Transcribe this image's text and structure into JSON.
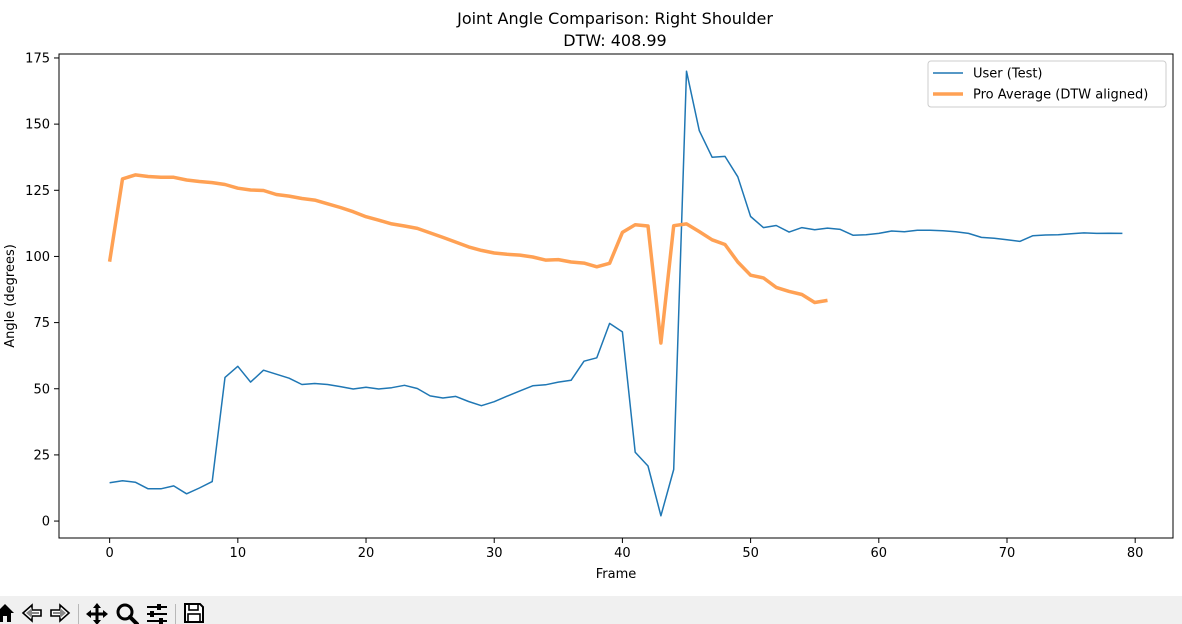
{
  "chart_data": {
    "type": "line",
    "title": "Joint Angle Comparison: Right Shoulder",
    "subtitle": "DTW: 408.99",
    "xlabel": "Frame",
    "ylabel": "Angle (degrees)",
    "xlim": [
      -3.95,
      82.95
    ],
    "ylim": [
      -6.4,
      176.5
    ],
    "xticks": [
      0,
      10,
      20,
      30,
      40,
      50,
      60,
      70,
      80
    ],
    "yticks": [
      0,
      25,
      50,
      75,
      100,
      125,
      150,
      175
    ],
    "grid": false,
    "legend_position": "top-right",
    "series": [
      {
        "name": "User (Test)",
        "color": "#1f77b4",
        "x": [
          0,
          1,
          2,
          3,
          4,
          5,
          6,
          7,
          8,
          9,
          10,
          11,
          12,
          13,
          14,
          15,
          16,
          17,
          18,
          19,
          20,
          21,
          22,
          23,
          24,
          25,
          26,
          27,
          28,
          29,
          30,
          31,
          32,
          33,
          34,
          35,
          36,
          37,
          38,
          39,
          40,
          41,
          42,
          43,
          44,
          45,
          46,
          47,
          48,
          49,
          50,
          51,
          52,
          53,
          54,
          55,
          56,
          57,
          58,
          59,
          60,
          61,
          62,
          63,
          64,
          65,
          66,
          67,
          68,
          69,
          70,
          71,
          72,
          73,
          74,
          75,
          76,
          77,
          78,
          79
        ],
        "y": [
          14.5,
          15.2,
          14.7,
          12.2,
          12.2,
          13.3,
          10.3,
          12.5,
          14.9,
          54.3,
          58.5,
          52.5,
          57.0,
          55.5,
          54.0,
          51.6,
          52.0,
          51.6,
          50.8,
          49.9,
          50.6,
          49.9,
          50.4,
          51.3,
          50.1,
          47.3,
          46.5,
          47.1,
          45.2,
          43.6,
          45.1,
          47.2,
          49.2,
          51.1,
          51.5,
          52.5,
          53.2,
          60.4,
          61.7,
          74.7,
          71.5,
          26.0,
          20.8,
          2.0,
          19.5,
          170.0,
          147.5,
          137.5,
          137.8,
          130.1,
          115.1,
          110.9,
          111.7,
          109.2,
          110.9,
          110.1,
          110.7,
          110.2,
          108.0,
          108.2,
          108.7,
          109.6,
          109.3,
          109.9,
          109.9,
          109.7,
          109.3,
          108.7,
          107.2,
          106.9,
          106.3,
          105.7,
          107.8,
          108.1,
          108.2,
          108.6,
          108.9,
          108.7,
          108.8,
          108.7
        ]
      },
      {
        "name": "Pro Average (DTW aligned)",
        "color": "#ffa154",
        "x": [
          0,
          1,
          2,
          3,
          4,
          5,
          6,
          7,
          8,
          9,
          10,
          11,
          12,
          13,
          14,
          15,
          16,
          17,
          18,
          19,
          20,
          21,
          22,
          23,
          24,
          25,
          26,
          27,
          28,
          29,
          30,
          31,
          32,
          33,
          34,
          35,
          36,
          37,
          38,
          39,
          40,
          41,
          42,
          43,
          44,
          45,
          46,
          47,
          48,
          49,
          50,
          51,
          52,
          53,
          54,
          55,
          56
        ],
        "y": [
          98.0,
          129.3,
          130.8,
          130.2,
          129.9,
          129.9,
          128.9,
          128.3,
          127.9,
          127.2,
          125.8,
          125.1,
          124.9,
          123.4,
          122.8,
          121.9,
          121.3,
          119.9,
          118.5,
          116.9,
          115.0,
          113.7,
          112.3,
          111.5,
          110.6,
          108.9,
          107.2,
          105.4,
          103.6,
          102.3,
          101.3,
          100.8,
          100.5,
          99.8,
          98.6,
          98.8,
          97.9,
          97.5,
          96.1,
          97.4,
          109.1,
          112.0,
          111.5,
          67.3,
          111.6,
          112.3,
          109.4,
          106.3,
          104.5,
          97.9,
          92.9,
          91.9,
          88.3,
          86.8,
          85.6,
          82.6,
          83.4
        ]
      }
    ]
  },
  "toolbar": [
    {
      "name": "home-button",
      "icon": "home-icon"
    },
    {
      "name": "back-button",
      "icon": "back-arrow-icon"
    },
    {
      "name": "forward-button",
      "icon": "forward-arrow-icon"
    },
    {
      "name": "pan-button",
      "icon": "move-icon"
    },
    {
      "name": "zoom-button",
      "icon": "zoom-icon"
    },
    {
      "name": "configure-subplots-button",
      "icon": "sliders-icon"
    },
    {
      "name": "save-button",
      "icon": "save-icon"
    }
  ]
}
